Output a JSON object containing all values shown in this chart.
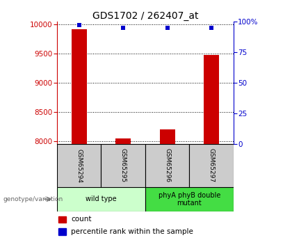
{
  "title": "GDS1702 / 262407_at",
  "samples": [
    "GSM65294",
    "GSM65295",
    "GSM65296",
    "GSM65297"
  ],
  "counts": [
    9920,
    8050,
    8200,
    9480
  ],
  "percentile_ranks": [
    97,
    95,
    95,
    95
  ],
  "ylim_left": [
    7950,
    10050
  ],
  "ylim_right": [
    0,
    100
  ],
  "yticks_left": [
    8000,
    8500,
    9000,
    9500,
    10000
  ],
  "yticks_right": [
    0,
    25,
    50,
    75,
    100
  ],
  "ytick_labels_right": [
    "0",
    "25",
    "50",
    "75",
    "100%"
  ],
  "bar_color": "#cc0000",
  "dot_color": "#0000cc",
  "groups": [
    {
      "label": "wild type",
      "samples": [
        0,
        1
      ],
      "color": "#ccffcc"
    },
    {
      "label": "phyA phyB double\nmutant",
      "samples": [
        2,
        3
      ],
      "color": "#44dd44"
    }
  ],
  "genotype_label": "genotype/variation",
  "legend_count_label": "count",
  "legend_pct_label": "percentile rank within the sample",
  "axis_left_color": "#cc0000",
  "axis_right_color": "#0000cc",
  "background_color": "#ffffff",
  "sample_box_color": "#cccccc",
  "title_fontsize": 10,
  "tick_fontsize": 7.5,
  "legend_fontsize": 7.5
}
